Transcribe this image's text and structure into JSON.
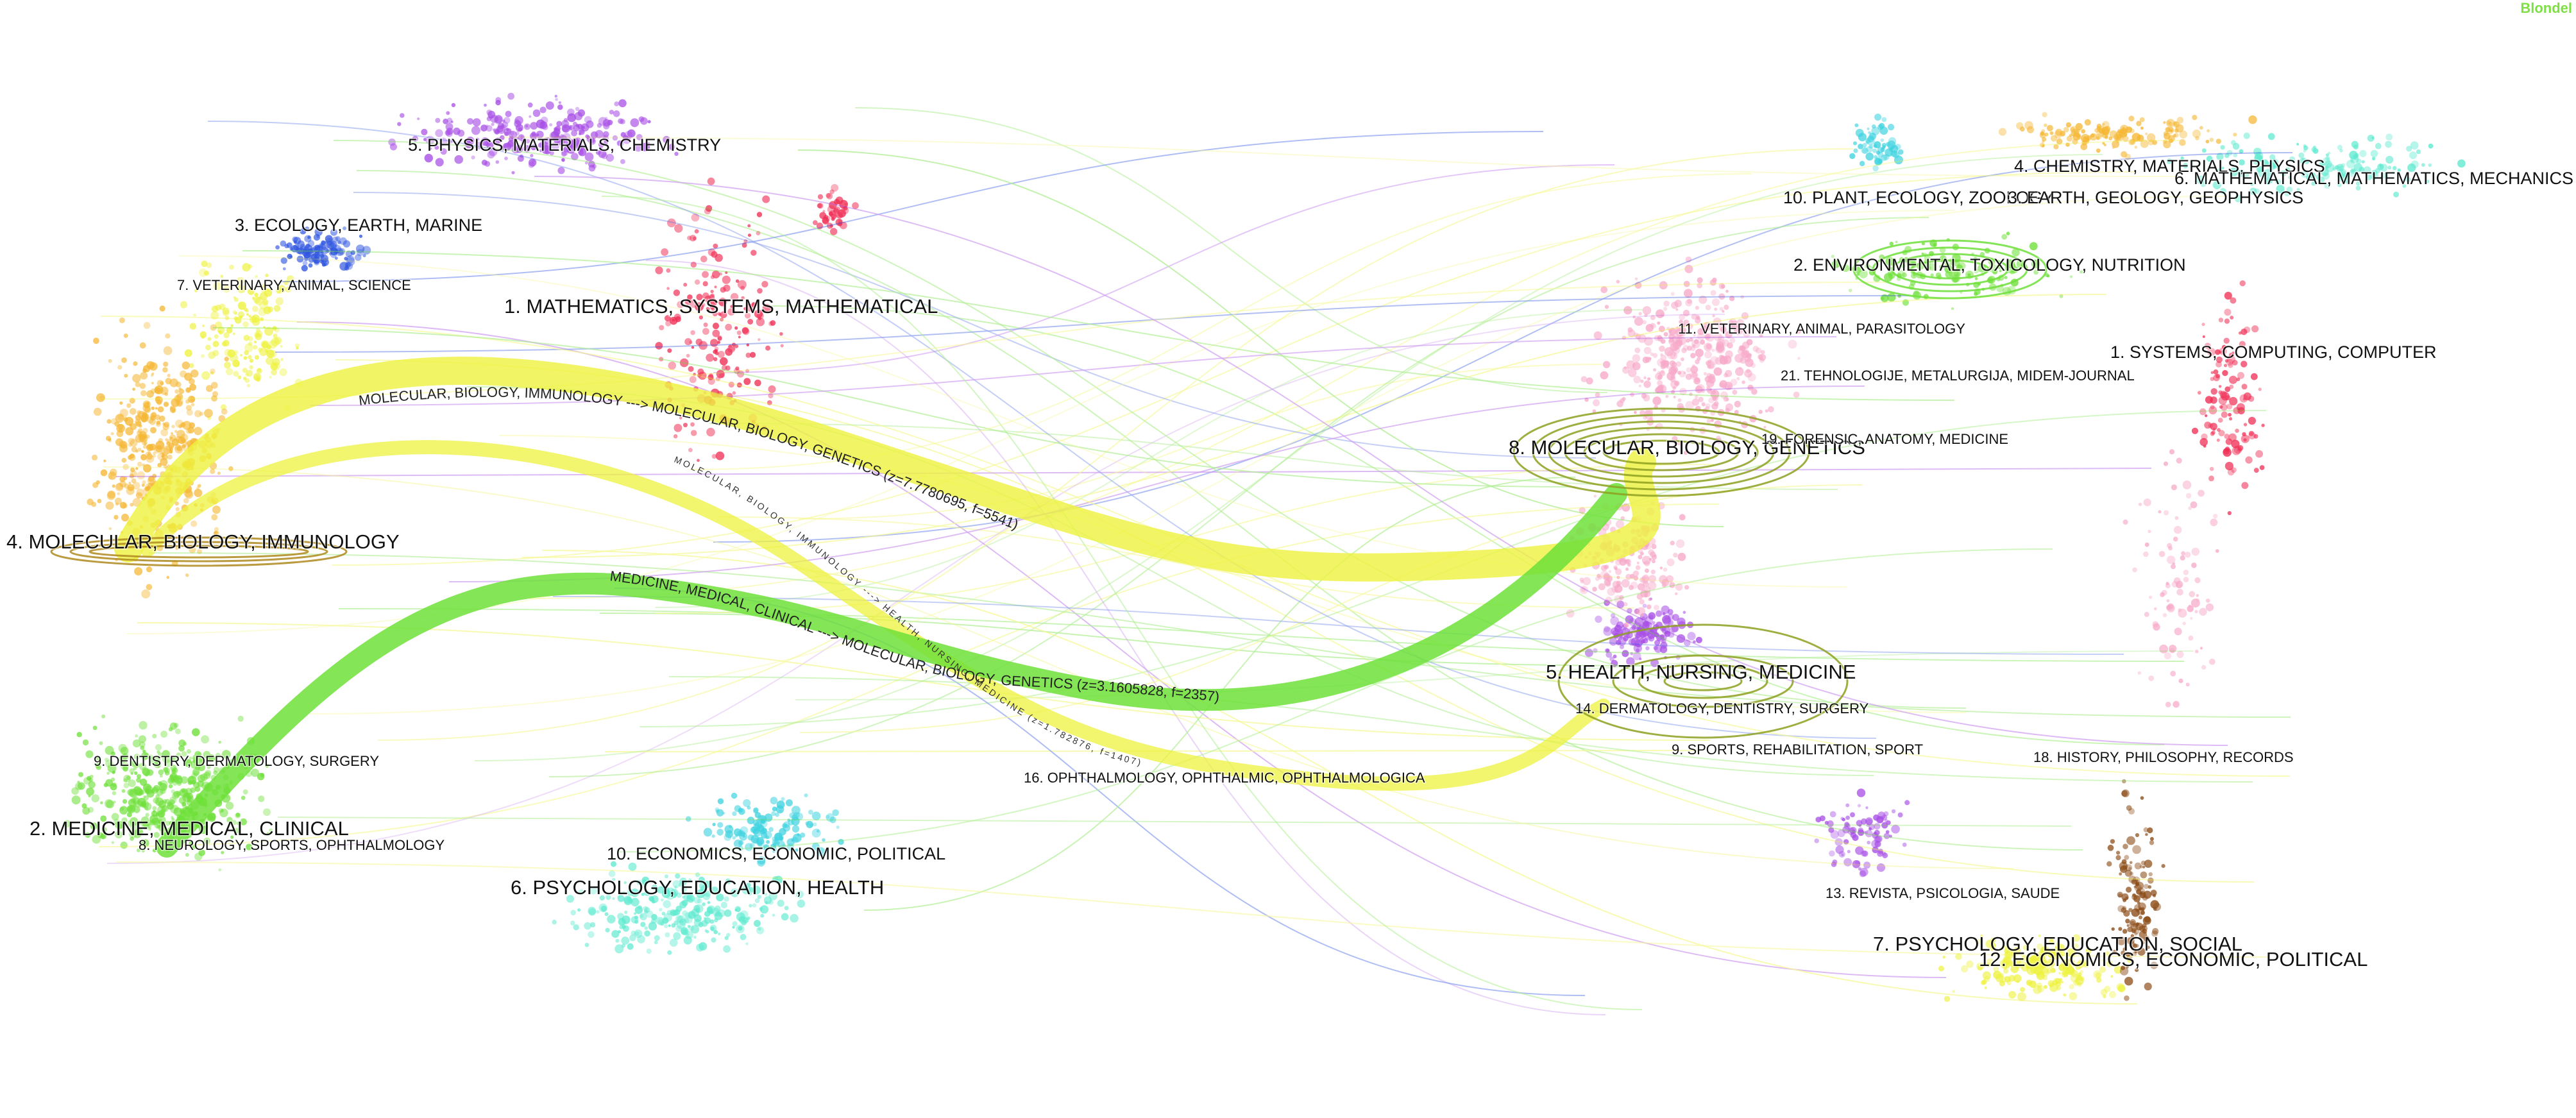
{
  "algorithm": "Blondel",
  "colors": {
    "green": "#6fe03a",
    "yellow": "#eef23e",
    "orange": "#f5b733",
    "purple": "#a84fe6",
    "blue": "#2f55e0",
    "red": "#ef2b52",
    "cyan": "#3fd3e0",
    "teal": "#5fead0",
    "pink": "#f7a8c8",
    "brown": "#8a4a14",
    "ellipse_olive": "#8fa020",
    "ellipse_gold": "#b08a1e"
  },
  "citing_clusters": [
    {
      "label": "5. PHYSICS, MATERIALS, CHEMISTRY"
    },
    {
      "label": "3. ECOLOGY, EARTH, MARINE"
    },
    {
      "label": "7. VETERINARY, ANIMAL, SCIENCE"
    },
    {
      "label": "1. MATHEMATICS, SYSTEMS, MATHEMATICAL"
    },
    {
      "label": "4. MOLECULAR, BIOLOGY, IMMUNOLOGY"
    },
    {
      "label": "9. DENTISTRY, DERMATOLOGY, SURGERY"
    },
    {
      "label": "2. MEDICINE, MEDICAL, CLINICAL"
    },
    {
      "label": "8. NEUROLOGY, SPORTS, OPHTHALMOLOGY"
    },
    {
      "label": "10. ECONOMICS, ECONOMIC, POLITICAL"
    },
    {
      "label": "6. PSYCHOLOGY, EDUCATION, HEALTH"
    }
  ],
  "cited_clusters": [
    {
      "label": "4. CHEMISTRY, MATERIALS, PHYSICS"
    },
    {
      "label": "6. MATHEMATICAL, MATHEMATICS, MECHANICS"
    },
    {
      "label": "10. PLANT, ECOLOGY, ZOOLOGY"
    },
    {
      "label": "3. EARTH, GEOLOGY, GEOPHYSICS"
    },
    {
      "label": "2. ENVIRONMENTAL, TOXICOLOGY, NUTRITION"
    },
    {
      "label": "11. VETERINARY, ANIMAL, PARASITOLOGY"
    },
    {
      "label": "1. SYSTEMS, COMPUTING, COMPUTER"
    },
    {
      "label": "21. TEHNOLOGIJE, METALURGIJA, MIDEM-JOURNAL"
    },
    {
      "label": "8. MOLECULAR, BIOLOGY, GENETICS"
    },
    {
      "label": "19. FORENSIC, ANATOMY, MEDICINE"
    },
    {
      "label": "5. HEALTH, NURSING, MEDICINE"
    },
    {
      "label": "14. DERMATOLOGY, DENTISTRY, SURGERY"
    },
    {
      "label": "9. SPORTS, REHABILITATION, SPORT"
    },
    {
      "label": "18. HISTORY, PHILOSOPHY, RECORDS"
    },
    {
      "label": "16. OPHTHALMOLOGY, OPHTHALMIC, OPHTHALMOLOGICA"
    },
    {
      "label": "13. REVISTA, PSICOLOGIA, SAUDE"
    },
    {
      "label": "7. PSYCHOLOGY, EDUCATION, SOCIAL"
    },
    {
      "label": "12. ECONOMICS, ECONOMIC, POLITICAL"
    }
  ],
  "main_paths": [
    {
      "label": "MOLECULAR, BIOLOGY, IMMUNOLOGY ---> MOLECULAR, BIOLOGY, GENETICS (z=7.7780695, f=5541)"
    },
    {
      "label": "MEDICINE, MEDICAL, CLINICAL ---> MOLECULAR, BIOLOGY, GENETICS (z=3.1605828, f=2357)"
    },
    {
      "label": "MOLECULAR, BIOLOGY, IMMUNOLOGY ---> HEALTH, NURSING, MEDICINE (z=1.782876, f=1407)"
    }
  ]
}
